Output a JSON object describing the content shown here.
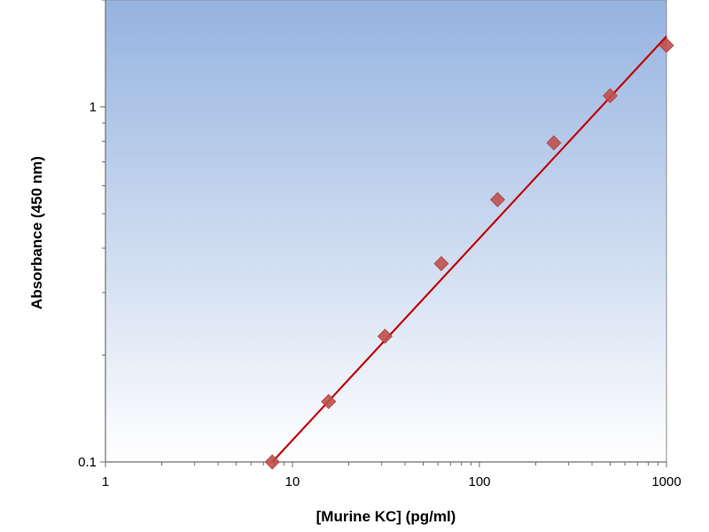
{
  "chart_data": {
    "type": "scatter",
    "title": "",
    "xlabel": "[Murine KC] (pg/ml)",
    "ylabel": "Absorbance (450 nm)",
    "x_scale": "log",
    "y_scale": "log",
    "xlim": [
      1,
      1000
    ],
    "ylim": [
      0.1,
      2
    ],
    "x_ticks": [
      1,
      10,
      100,
      1000
    ],
    "x_tick_labels": [
      "1",
      "10",
      "100",
      "1000"
    ],
    "y_ticks": [
      0.1,
      1
    ],
    "y_tick_labels": [
      "0.1",
      "1"
    ],
    "grid": false,
    "legend": "none",
    "series": [
      {
        "x": [
          7.8,
          15.6,
          31.25,
          62.5,
          125,
          250,
          500,
          1000
        ],
        "y": [
          0.1,
          0.148,
          0.226,
          0.362,
          0.548,
          0.792,
          1.075,
          1.49
        ],
        "marker": "diamond",
        "color": "#c0504d"
      }
    ],
    "fit_line": {
      "x": [
        7.8,
        1000
      ],
      "y": [
        0.1,
        1.58
      ],
      "color": "#c00000"
    },
    "plot_background": {
      "gradient_top": "#95b3e0",
      "gradient_bottom": "#ffffff"
    }
  }
}
